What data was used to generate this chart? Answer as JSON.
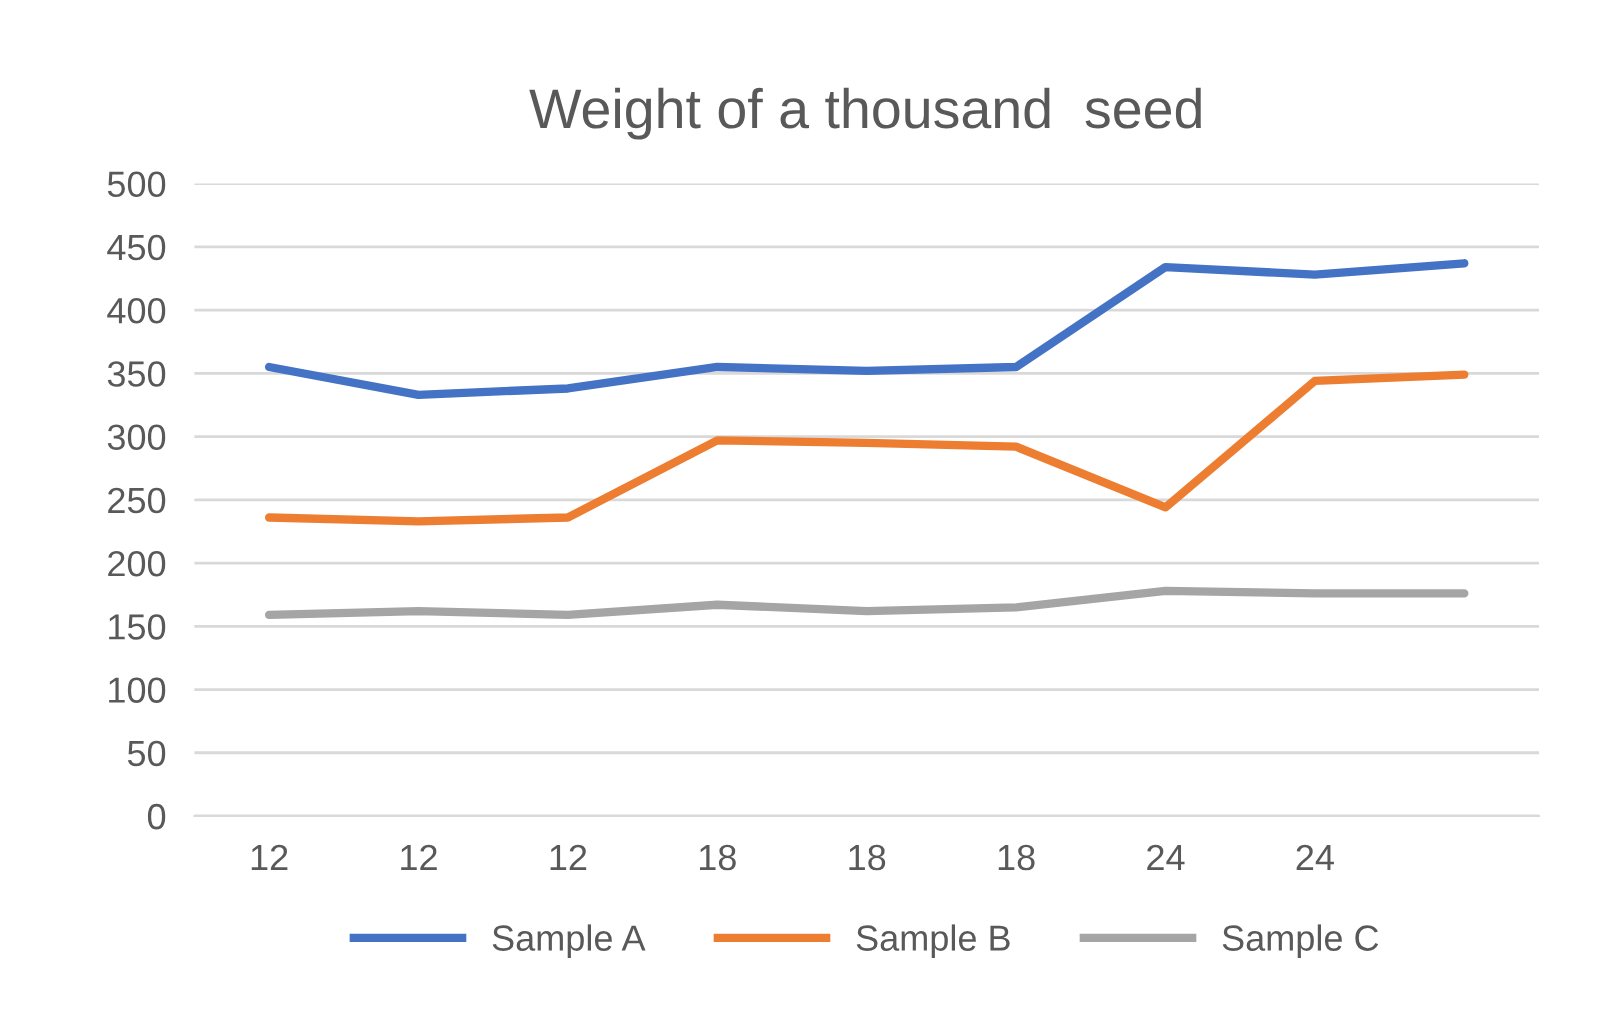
{
  "chart_data": {
    "type": "line",
    "title": "Weight of a thousand  seed",
    "categories": [
      "12",
      "12",
      "12",
      "18",
      "18",
      "18",
      "24",
      "24",
      null
    ],
    "series": [
      {
        "name": "Sample A",
        "color": "#4472c4",
        "values": [
          355,
          333,
          338,
          355,
          352,
          355,
          434,
          428,
          437
        ]
      },
      {
        "name": "Sample B",
        "color": "#ed7d31",
        "values": [
          236,
          233,
          236,
          297,
          295,
          292,
          244,
          344,
          349
        ]
      },
      {
        "name": "Sample C",
        "color": "#a5a5a5",
        "values": [
          159,
          162,
          159,
          167,
          162,
          165,
          178,
          176,
          176
        ]
      }
    ],
    "ylim": [
      0,
      500
    ],
    "yticks": [
      0,
      50,
      100,
      150,
      200,
      250,
      300,
      350,
      400,
      450,
      500
    ],
    "grid": "y",
    "legend": "bottom",
    "marker": "none",
    "line_style": "solid"
  }
}
